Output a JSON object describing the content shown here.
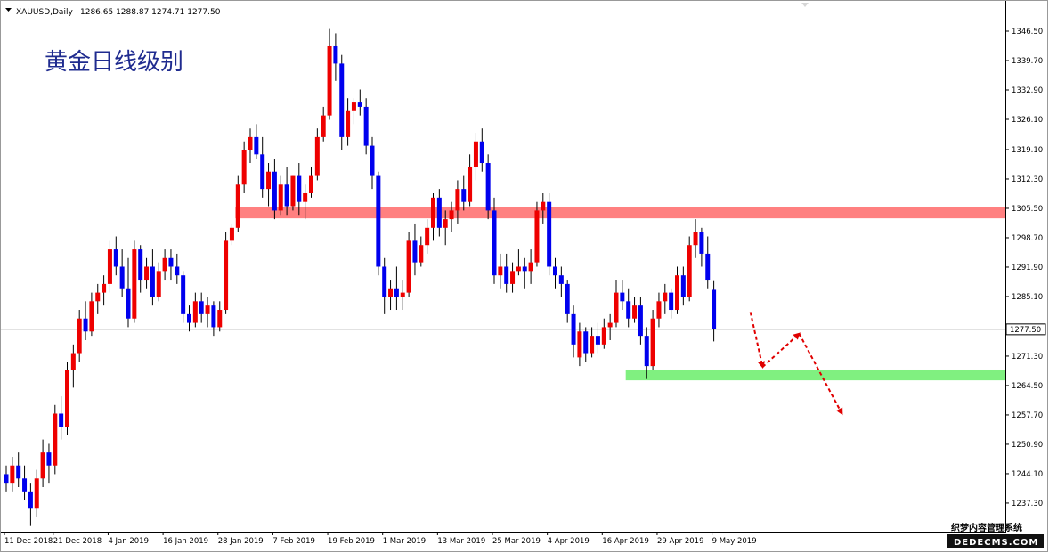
{
  "header": {
    "symbol": "XAUUSD,Daily",
    "ohlc": "1286.65 1288.87 1274.71 1277.50"
  },
  "overlay_title": "黄金日线级别",
  "watermark": {
    "line1": "织梦内容管理系统",
    "line2": "DEDECMS.COM"
  },
  "colors": {
    "bull": "#ee0000",
    "bear": "#0000ee",
    "resistance": "#ff8080",
    "support": "#80f080",
    "arrow": "#e00000"
  },
  "chart_data": {
    "type": "candlestick",
    "title": "",
    "current_price": 1277.5,
    "ylim": [
      1230.0,
      1352.0
    ],
    "y_ticks": [
      "1346.50",
      "1339.70",
      "1332.90",
      "1326.10",
      "1319.10",
      "1312.30",
      "1305.50",
      "1298.70",
      "1291.90",
      "1285.10",
      "1277.50",
      "1271.30",
      "1264.50",
      "1257.70",
      "1250.90",
      "1244.10",
      "1237.30"
    ],
    "x_ticks": [
      "11 Dec 2018",
      "21 Dec 2018",
      "4 Jan 2019",
      "16 Jan 2019",
      "28 Jan 2019",
      "7 Feb 2019",
      "19 Feb 2019",
      "1 Mar 2019",
      "13 Mar 2019",
      "25 Mar 2019",
      "4 Apr 2019",
      "16 Apr 2019",
      "29 Apr 2019",
      "9 May 2019"
    ],
    "x_tick_index": [
      0,
      8,
      17,
      26,
      35,
      44,
      53,
      62,
      71,
      80,
      89,
      98,
      107,
      116
    ],
    "candles": [
      [
        1244,
        1246,
        1240,
        1242
      ],
      [
        1242,
        1248,
        1240,
        1246
      ],
      [
        1246,
        1249,
        1241,
        1243
      ],
      [
        1243,
        1246,
        1238,
        1240
      ],
      [
        1240,
        1242,
        1232,
        1236
      ],
      [
        1236,
        1245,
        1234,
        1243
      ],
      [
        1243,
        1252,
        1241,
        1249
      ],
      [
        1249,
        1251,
        1242,
        1246
      ],
      [
        1246,
        1260,
        1244,
        1258
      ],
      [
        1258,
        1262,
        1252,
        1255
      ],
      [
        1255,
        1270,
        1253,
        1268
      ],
      [
        1268,
        1274,
        1264,
        1272
      ],
      [
        1272,
        1282,
        1270,
        1280
      ],
      [
        1280,
        1284,
        1275,
        1277
      ],
      [
        1277,
        1286,
        1276,
        1284
      ],
      [
        1284,
        1288,
        1281,
        1286
      ],
      [
        1286,
        1290,
        1283,
        1288
      ],
      [
        1288,
        1298,
        1286,
        1296
      ],
      [
        1296,
        1299,
        1290,
        1292
      ],
      [
        1292,
        1296,
        1285,
        1287
      ],
      [
        1287,
        1294,
        1278,
        1280
      ],
      [
        1280,
        1298,
        1279,
        1296
      ],
      [
        1296,
        1297,
        1286,
        1289
      ],
      [
        1289,
        1294,
        1287,
        1292
      ],
      [
        1292,
        1296,
        1283,
        1285
      ],
      [
        1285,
        1293,
        1284,
        1291
      ],
      [
        1291,
        1296,
        1289,
        1294
      ],
      [
        1294,
        1296,
        1289,
        1292
      ],
      [
        1292,
        1295,
        1288,
        1290
      ],
      [
        1290,
        1291,
        1279,
        1281
      ],
      [
        1281,
        1283,
        1277,
        1279
      ],
      [
        1279,
        1286,
        1278,
        1284
      ],
      [
        1284,
        1286,
        1279,
        1281
      ],
      [
        1281,
        1285,
        1278,
        1283
      ],
      [
        1283,
        1284,
        1276,
        1278
      ],
      [
        1278,
        1284,
        1277,
        1282
      ],
      [
        1282,
        1300,
        1281,
        1298
      ],
      [
        1298,
        1302,
        1297,
        1301
      ],
      [
        1301,
        1313,
        1300,
        1311
      ],
      [
        1311,
        1321,
        1309,
        1319
      ],
      [
        1319,
        1324,
        1316,
        1322
      ],
      [
        1322,
        1325,
        1317,
        1318
      ],
      [
        1318,
        1322,
        1308,
        1310
      ],
      [
        1310,
        1316,
        1306,
        1314
      ],
      [
        1314,
        1317,
        1303,
        1305
      ],
      [
        1305,
        1313,
        1304,
        1311
      ],
      [
        1311,
        1315,
        1304,
        1306
      ],
      [
        1306,
        1313,
        1305,
        1313
      ],
      [
        1313,
        1316,
        1304,
        1307
      ],
      [
        1307,
        1311,
        1303,
        1309
      ],
      [
        1309,
        1315,
        1308,
        1313
      ],
      [
        1313,
        1324,
        1312,
        1322
      ],
      [
        1322,
        1329,
        1321,
        1327
      ],
      [
        1327,
        1347,
        1326,
        1343
      ],
      [
        1343,
        1346,
        1335,
        1339
      ],
      [
        1339,
        1341,
        1319,
        1322
      ],
      [
        1322,
        1331,
        1320,
        1328
      ],
      [
        1328,
        1331,
        1325,
        1330
      ],
      [
        1330,
        1333,
        1327,
        1329
      ],
      [
        1329,
        1331,
        1318,
        1320
      ],
      [
        1320,
        1322,
        1310,
        1313
      ],
      [
        1313,
        1314,
        1290,
        1292
      ],
      [
        1292,
        1294,
        1281,
        1285
      ],
      [
        1285,
        1289,
        1282,
        1287
      ],
      [
        1287,
        1292,
        1282,
        1285
      ],
      [
        1285,
        1289,
        1282,
        1286
      ],
      [
        1286,
        1300,
        1285,
        1298
      ],
      [
        1298,
        1302,
        1290,
        1293
      ],
      [
        1293,
        1299,
        1292,
        1297
      ],
      [
        1297,
        1303,
        1295,
        1301
      ],
      [
        1301,
        1309,
        1298,
        1308
      ],
      [
        1308,
        1310,
        1299,
        1301
      ],
      [
        1301,
        1305,
        1297,
        1303
      ],
      [
        1303,
        1307,
        1300,
        1305
      ],
      [
        1305,
        1312,
        1302,
        1310
      ],
      [
        1310,
        1313,
        1305,
        1307
      ],
      [
        1307,
        1318,
        1306,
        1315
      ],
      [
        1315,
        1323,
        1312,
        1321
      ],
      [
        1321,
        1324,
        1314,
        1316
      ],
      [
        1316,
        1318,
        1303,
        1305
      ],
      [
        1305,
        1308,
        1288,
        1290
      ],
      [
        1290,
        1295,
        1287,
        1292
      ],
      [
        1292,
        1295,
        1286,
        1288
      ],
      [
        1288,
        1293,
        1286,
        1291
      ],
      [
        1291,
        1296,
        1290,
        1292
      ],
      [
        1292,
        1294,
        1287,
        1291
      ],
      [
        1291,
        1296,
        1288,
        1293
      ],
      [
        1293,
        1307,
        1292,
        1305
      ],
      [
        1305,
        1309,
        1302,
        1307
      ],
      [
        1307,
        1309,
        1290,
        1292
      ],
      [
        1292,
        1294,
        1287,
        1290
      ],
      [
        1290,
        1292,
        1285,
        1288
      ],
      [
        1288,
        1289,
        1279,
        1281
      ],
      [
        1281,
        1283,
        1271,
        1274
      ],
      [
        1271,
        1279,
        1269,
        1277
      ],
      [
        1277,
        1278,
        1270,
        1272
      ],
      [
        1272,
        1278,
        1271,
        1276
      ],
      [
        1276,
        1279,
        1272,
        1274
      ],
      [
        1274,
        1280,
        1273,
        1278
      ],
      [
        1278,
        1281,
        1275,
        1279
      ],
      [
        1279,
        1289,
        1278,
        1286
      ],
      [
        1286,
        1289,
        1282,
        1284
      ],
      [
        1284,
        1287,
        1278,
        1280
      ],
      [
        1280,
        1285,
        1279,
        1283
      ],
      [
        1283,
        1285,
        1274,
        1276
      ],
      [
        1276,
        1278,
        1266,
        1269
      ],
      [
        1269,
        1282,
        1268,
        1280
      ],
      [
        1280,
        1286,
        1278,
        1284
      ],
      [
        1284,
        1288,
        1281,
        1286
      ],
      [
        1286,
        1287,
        1280,
        1282
      ],
      [
        1282,
        1292,
        1281,
        1290
      ],
      [
        1290,
        1292,
        1283,
        1285
      ],
      [
        1285,
        1299,
        1284,
        1297
      ],
      [
        1297,
        1303,
        1294,
        1300
      ],
      [
        1300,
        1301,
        1292,
        1295
      ],
      [
        1295,
        1299,
        1287,
        1289
      ],
      [
        1286.65,
        1288.87,
        1274.71,
        1277.5
      ]
    ],
    "zones": [
      {
        "name": "resistance",
        "from": 1303.2,
        "to": 1305.9,
        "start_index": 38,
        "end": "right"
      },
      {
        "name": "support",
        "from": 1265.7,
        "to": 1268.2,
        "start_index": 102,
        "end": "right"
      }
    ],
    "projection": [
      {
        "index": 122,
        "price": 1281.5
      },
      {
        "index": 124,
        "price": 1268.8
      },
      {
        "index": 130,
        "price": 1276.5
      },
      {
        "index": 137,
        "price": 1258.0
      }
    ]
  }
}
